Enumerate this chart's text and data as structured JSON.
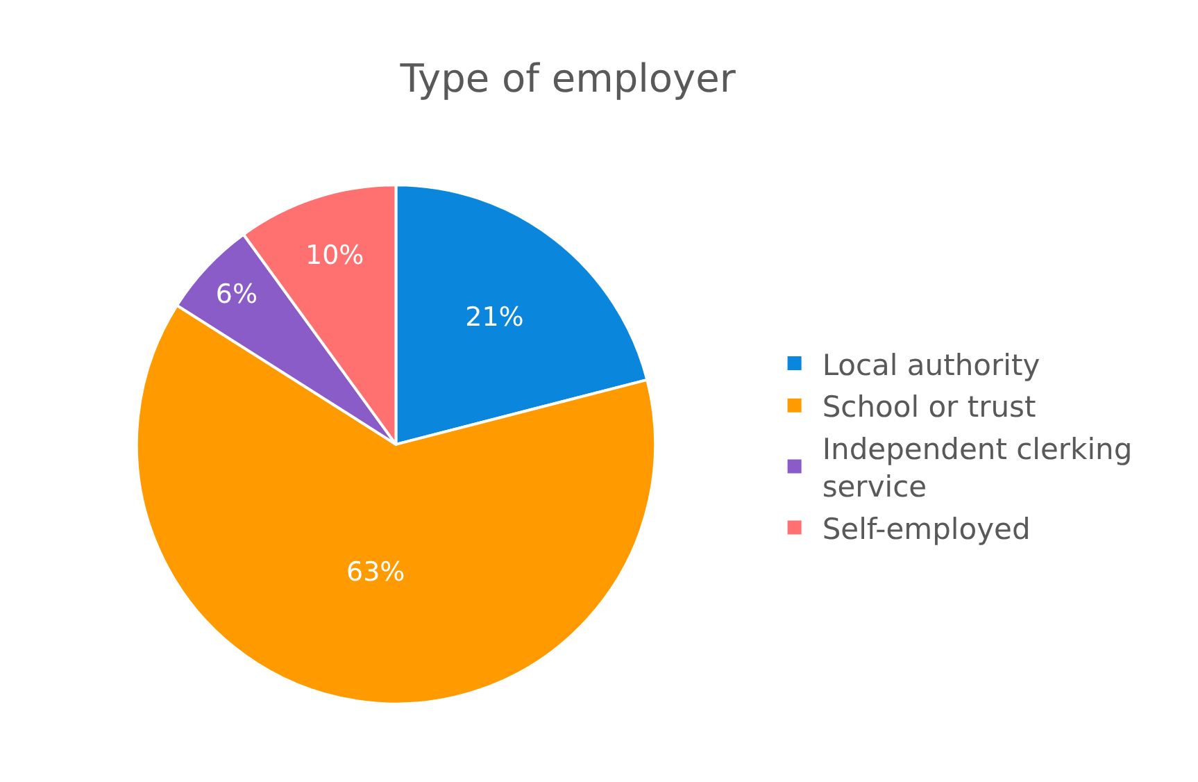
{
  "chart_data": {
    "type": "pie",
    "title": "Type of employer",
    "categories": [
      "Local authority",
      "School or trust",
      "Independent clerking service",
      "Self-employed"
    ],
    "values": [
      21,
      63,
      6,
      10
    ],
    "colors": [
      "#0a86dc",
      "#ff9a00",
      "#8a5cc8",
      "#ff7171"
    ],
    "value_labels": [
      "21%",
      "63%",
      "6%",
      "10%"
    ],
    "legend": "right"
  }
}
